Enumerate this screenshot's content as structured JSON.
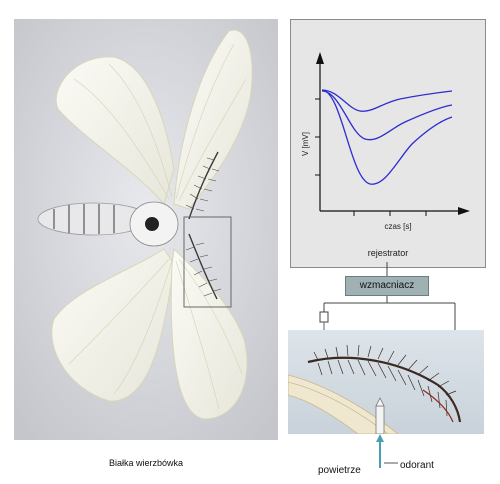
{
  "caption": "Białka wierzbówka",
  "recorder": {
    "label": "rejestrator",
    "y_axis_label": "V [mV]",
    "x_axis_label": "czas [s]",
    "curve_color": "#2d2dd0"
  },
  "amplifier": {
    "label": "wzmacniacz",
    "color": "#9fb1b3"
  },
  "air_label": "powietrze",
  "odorant_label": "odorant"
}
